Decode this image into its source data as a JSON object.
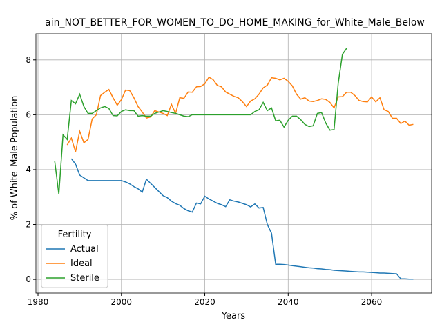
{
  "chart_data": {
    "type": "line",
    "title": "ain_NOT_BETTER_FOR_WOMEN_TO_DO_HOME_MAKING_for_White_Male_Below",
    "xlabel": "Years",
    "ylabel": "% of White_Male Population",
    "x": [
      1984,
      1985,
      1986,
      1987,
      1988,
      1989,
      1990,
      1991,
      1992,
      1993,
      1994,
      1995,
      1996,
      1997,
      1998,
      1999,
      2000,
      2001,
      2002,
      2003,
      2004,
      2005,
      2006,
      2007,
      2008,
      2009,
      2010,
      2011,
      2012,
      2013,
      2014,
      2015,
      2016,
      2017,
      2018,
      2019,
      2020,
      2021,
      2022,
      2023,
      2024,
      2025,
      2026,
      2027,
      2028,
      2029,
      2030,
      2031,
      2032,
      2033,
      2034,
      2035,
      2036,
      2037,
      2038,
      2039,
      2040,
      2041,
      2042,
      2043,
      2044,
      2045,
      2046,
      2047,
      2048,
      2049,
      2050,
      2051,
      2052,
      2053,
      2054,
      2055,
      2056,
      2057,
      2058,
      2059,
      2060,
      2061,
      2062,
      2063,
      2064,
      2065,
      2066,
      2067,
      2068,
      2069,
      2070
    ],
    "series": [
      {
        "name": "Actual",
        "color": "#1f77b4",
        "values": [
          null,
          null,
          null,
          null,
          4.4,
          4.2,
          3.8,
          3.7,
          3.6,
          3.6,
          3.6,
          3.6,
          3.6,
          3.6,
          3.6,
          3.6,
          3.6,
          3.55,
          3.48,
          3.38,
          3.3,
          3.18,
          3.65,
          3.5,
          3.35,
          3.2,
          3.05,
          2.98,
          2.85,
          2.76,
          2.7,
          2.58,
          2.5,
          2.45,
          2.78,
          2.75,
          3.03,
          2.93,
          2.85,
          2.77,
          2.72,
          2.65,
          2.9,
          2.85,
          2.82,
          2.77,
          2.72,
          2.64,
          2.75,
          2.6,
          2.62,
          2.0,
          1.68,
          0.55,
          0.55,
          0.54,
          0.52,
          0.5,
          0.48,
          0.46,
          0.44,
          0.42,
          0.41,
          0.39,
          0.38,
          0.36,
          0.35,
          0.33,
          0.32,
          0.31,
          0.3,
          0.29,
          0.28,
          0.27,
          0.27,
          0.26,
          0.25,
          0.24,
          0.23,
          0.23,
          0.22,
          0.21,
          0.2,
          0.02,
          0.02,
          0.01,
          0.01
        ]
      },
      {
        "name": "Ideal",
        "color": "#ff7f0e",
        "values": [
          null,
          null,
          null,
          4.9,
          5.15,
          4.65,
          5.4,
          4.98,
          5.1,
          5.85,
          6.0,
          6.7,
          6.82,
          6.92,
          6.62,
          6.35,
          6.55,
          6.9,
          6.88,
          6.62,
          6.3,
          6.1,
          5.88,
          5.92,
          6.15,
          6.1,
          6.05,
          5.97,
          6.38,
          6.05,
          6.62,
          6.6,
          6.83,
          6.82,
          7.02,
          7.03,
          7.13,
          7.37,
          7.28,
          7.07,
          7.02,
          6.83,
          6.75,
          6.67,
          6.62,
          6.48,
          6.3,
          6.5,
          6.58,
          6.75,
          6.98,
          7.08,
          7.35,
          7.33,
          7.27,
          7.33,
          7.22,
          7.05,
          6.75,
          6.57,
          6.62,
          6.5,
          6.48,
          6.52,
          6.58,
          6.56,
          6.45,
          6.25,
          6.65,
          6.66,
          6.82,
          6.82,
          6.7,
          6.52,
          6.48,
          6.47,
          6.65,
          6.47,
          6.62,
          6.18,
          6.12,
          5.87,
          5.87,
          5.68,
          5.77,
          5.62,
          5.65
        ]
      },
      {
        "name": "Sterile",
        "color": "#2ca02c",
        "values": [
          4.32,
          3.1,
          5.27,
          5.1,
          6.52,
          6.4,
          6.75,
          6.3,
          6.05,
          6.05,
          6.15,
          6.25,
          6.3,
          6.23,
          5.97,
          5.96,
          6.12,
          6.18,
          6.15,
          6.15,
          5.95,
          5.97,
          5.95,
          5.95,
          6.05,
          6.1,
          6.15,
          6.12,
          6.08,
          6.05,
          6.0,
          5.95,
          5.93,
          6.0,
          6.0,
          6.0,
          6.0,
          6.0,
          6.0,
          6.0,
          6.0,
          6.0,
          6.0,
          6.0,
          6.0,
          6.0,
          6.0,
          6.0,
          6.12,
          6.18,
          6.45,
          6.15,
          6.25,
          5.78,
          5.8,
          5.55,
          5.8,
          5.95,
          5.95,
          5.82,
          5.65,
          5.57,
          5.6,
          6.05,
          6.08,
          5.7,
          5.44,
          5.46,
          7.15,
          8.2,
          8.42,
          null,
          null,
          null,
          null,
          null,
          null,
          null,
          null,
          null,
          null,
          null,
          null,
          null,
          null,
          null,
          null
        ]
      }
    ],
    "xlim": [
      1979.5,
      2074.4
    ],
    "ylim": [
      -0.5,
      8.95
    ],
    "xticks": [
      1980,
      2000,
      2020,
      2040,
      2060
    ],
    "yticks": [
      0,
      2,
      4,
      6,
      8
    ],
    "grid": true,
    "legend_title": "Fertility",
    "legend_position": "lower left"
  }
}
